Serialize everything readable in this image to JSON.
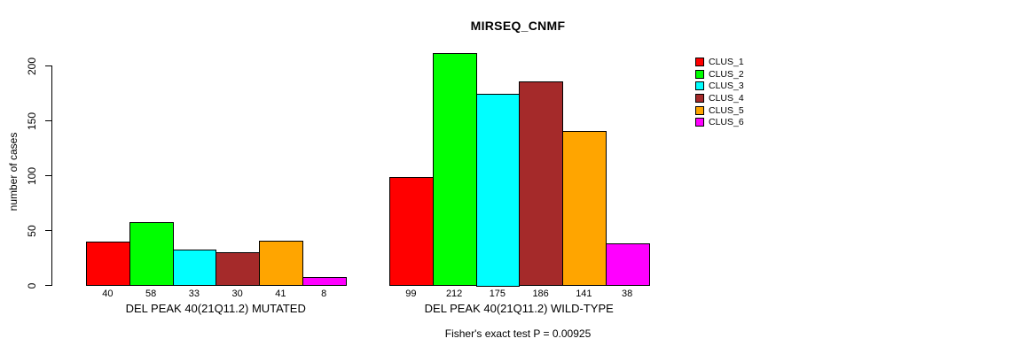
{
  "chart_data": {
    "type": "bar",
    "title": "MIRSEQ_CNMF",
    "ylabel": "number of cases",
    "xlabel": "",
    "ylim": [
      0,
      220
    ],
    "yticks": [
      0,
      50,
      100,
      150,
      200
    ],
    "grid": false,
    "legend_position": "right",
    "bar_border_color": "#000000",
    "background_color": "#ffffff",
    "categories": [
      "DEL PEAK 40(21Q11.2) MUTATED",
      "DEL PEAK 40(21Q11.2) WILD-TYPE"
    ],
    "series": [
      {
        "name": "CLUS_1",
        "color": "#FF0000",
        "values": [
          40,
          99
        ]
      },
      {
        "name": "CLUS_2",
        "color": "#00FF00",
        "values": [
          58,
          212
        ]
      },
      {
        "name": "CLUS_3",
        "color": "#00FFFF",
        "values": [
          33,
          175
        ]
      },
      {
        "name": "CLUS_4",
        "color": "#A52A2A",
        "values": [
          30,
          186
        ]
      },
      {
        "name": "CLUS_5",
        "color": "#FFA500",
        "values": [
          41,
          141
        ]
      },
      {
        "name": "CLUS_6",
        "color": "#FF00FF",
        "values": [
          8,
          38
        ]
      }
    ],
    "bar_value_labels_shown": true,
    "annotation": "Fisher's exact test P = 0.00925"
  }
}
